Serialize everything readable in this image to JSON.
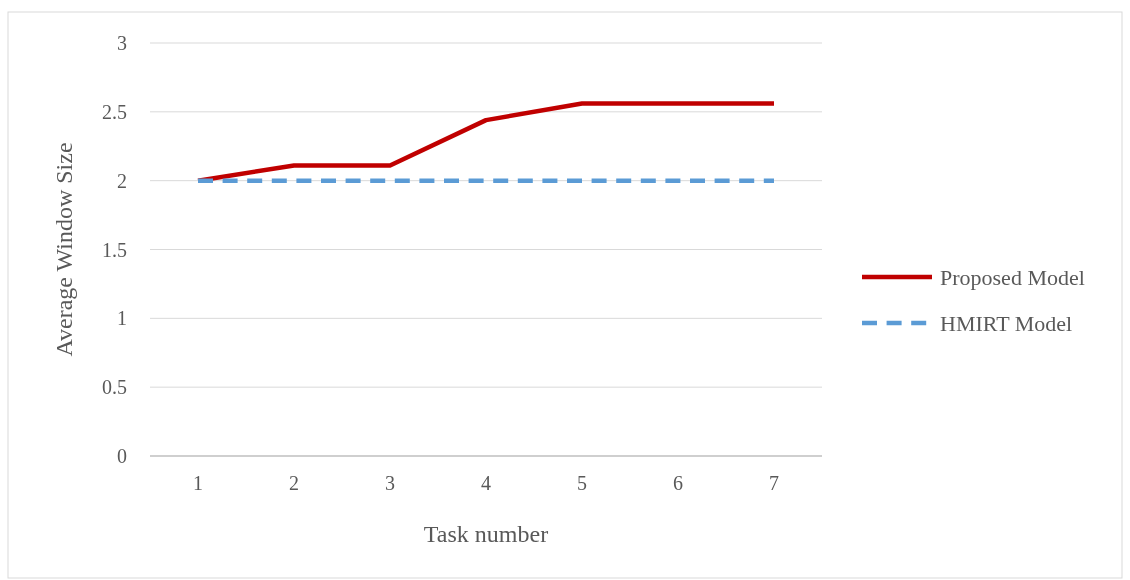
{
  "chart_data": {
    "type": "line",
    "xlabel": "Task number",
    "ylabel": "Average Window Size",
    "categories": [
      "1",
      "2",
      "3",
      "4",
      "5",
      "6",
      "7"
    ],
    "series": [
      {
        "name": "Proposed Model",
        "color": "#c00000",
        "values": [
          2,
          2.11,
          2.11,
          2.44,
          2.56,
          2.56,
          2.56
        ],
        "line_style": "solid"
      },
      {
        "name": "HMIRT Model",
        "color": "#5b9bd5",
        "values": [
          2,
          2,
          2,
          2,
          2,
          2,
          2
        ],
        "line_style": "dashed"
      }
    ],
    "ylim": [
      0,
      3
    ],
    "yticks": [
      0,
      0.5,
      1,
      1.5,
      2,
      2.5,
      3
    ],
    "grid": "y",
    "legend": "right",
    "marker": "none"
  }
}
